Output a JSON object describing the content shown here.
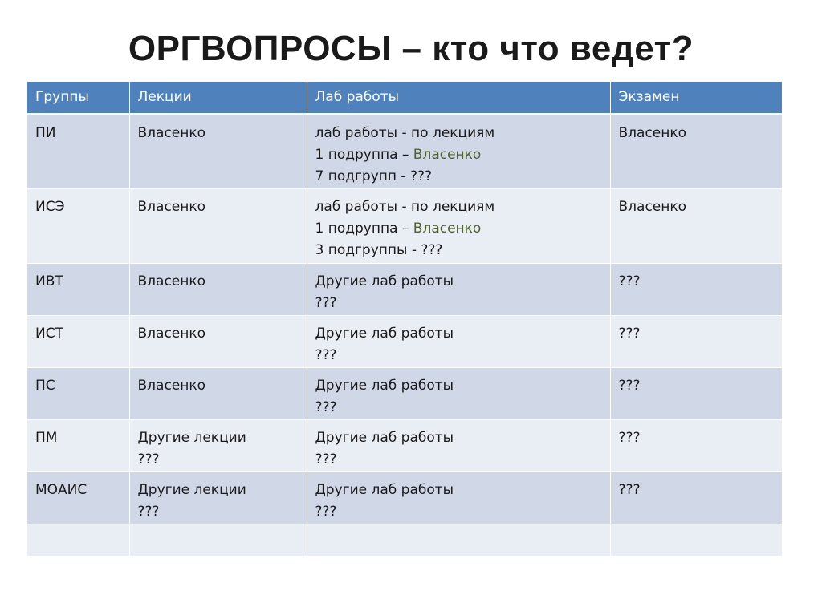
{
  "title": "ОРГВОПРОСЫ – кто что ведет?",
  "colors": {
    "header_bg": "#4f81bd",
    "row_odd_bg": "#d0d8e8",
    "row_even_bg": "#e9edf4",
    "accent_name": "#4f6228"
  },
  "table": {
    "headers": [
      "Группы",
      "Лекции",
      "Лаб работы",
      "Экзамен"
    ],
    "rows": [
      {
        "group": "ПИ",
        "lectures": "Власенко",
        "labs_line1": "лаб работы - по лекциям",
        "labs_line2_prefix": "1 подруппа – ",
        "labs_line2_name": "Власенко",
        "labs_line3": "7 подгрупп - ???",
        "exam": "Власенко"
      },
      {
        "group": "ИСЭ",
        "lectures": "Власенко",
        "labs_line1": "лаб работы - по лекциям",
        "labs_line2_prefix": "1 подруппа – ",
        "labs_line2_name": "Власенко",
        "labs_line3": "3 подгруппы - ???",
        "exam": "Власенко"
      },
      {
        "group": "ИВТ",
        "lectures": "Власенко",
        "labs_line1": "Другие лаб работы",
        "labs_line2": "???",
        "exam": "???"
      },
      {
        "group": "ИСТ",
        "lectures": "Власенко",
        "labs_line1": "Другие лаб работы",
        "labs_line2": "???",
        "exam": "???"
      },
      {
        "group": "ПС",
        "lectures": "Власенко",
        "labs_line1": "Другие лаб работы",
        "labs_line2": "???",
        "exam": "???"
      },
      {
        "group": "ПМ",
        "lectures_line1": "Другие лекции",
        "lectures_line2": "???",
        "labs_line1": "Другие лаб работы",
        "labs_line2": "???",
        "exam": "???"
      },
      {
        "group": "МОАИС",
        "lectures_line1": "Другие лекции",
        "lectures_line2": "???",
        "labs_line1": "Другие лаб работы",
        "labs_line2": "???",
        "exam": "???"
      },
      {
        "group": "",
        "lectures": "",
        "labs": "",
        "exam": ""
      }
    ]
  }
}
